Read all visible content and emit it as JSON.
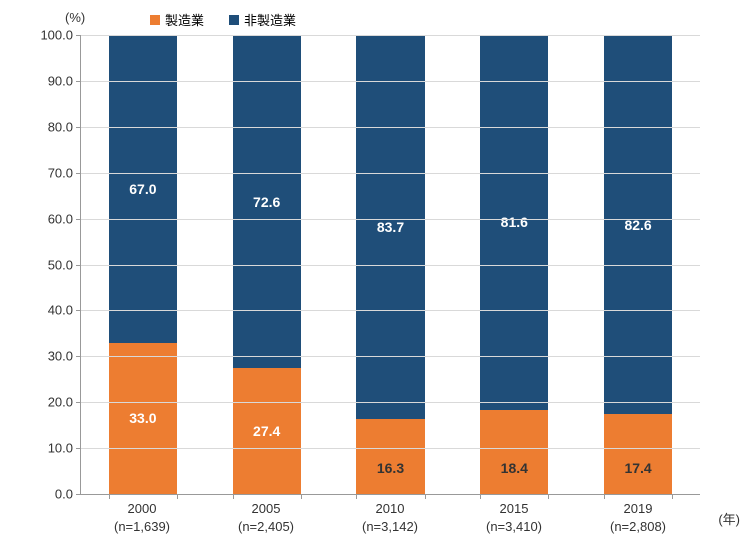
{
  "chart": {
    "type": "stacked-bar",
    "y_axis_unit": "(%)",
    "x_axis_unit": "(年)",
    "ylim": [
      0,
      100
    ],
    "ytick_step": 10,
    "background_color": "#ffffff",
    "grid_color": "#d9d9d9",
    "axis_color": "#999999",
    "bar_width_ratio": 0.55,
    "label_fontsize": 13,
    "value_fontsize": 14,
    "series": [
      {
        "name": "製造業",
        "color": "#ed7d31"
      },
      {
        "name": "非製造業",
        "color": "#1f4e79"
      }
    ],
    "categories": [
      {
        "year": "2000",
        "n": "(n=1,639)",
        "values": [
          33.0,
          67.0
        ]
      },
      {
        "year": "2005",
        "n": "(n=2,405)",
        "values": [
          27.4,
          72.6
        ]
      },
      {
        "year": "2010",
        "n": "(n=3,142)",
        "values": [
          16.3,
          83.7
        ]
      },
      {
        "year": "2015",
        "n": "(n=3,410)",
        "values": [
          18.4,
          81.6
        ]
      },
      {
        "year": "2019",
        "n": "(n=2,808)",
        "values": [
          17.4,
          82.6
        ]
      }
    ]
  }
}
